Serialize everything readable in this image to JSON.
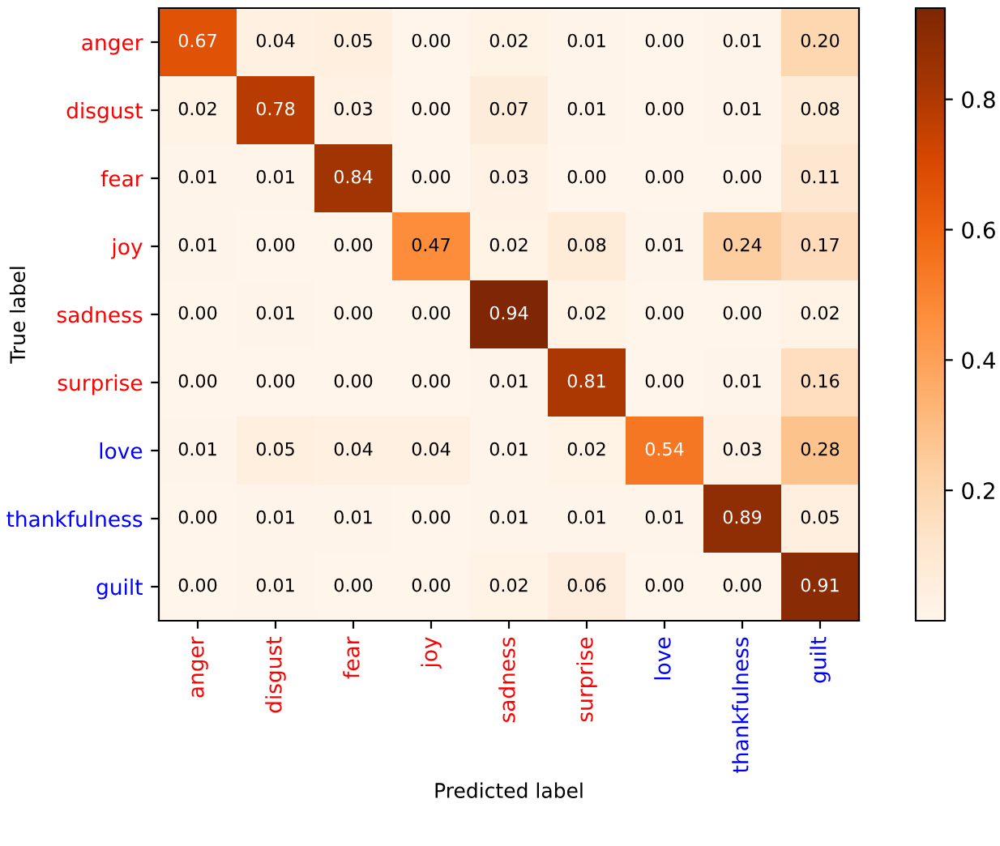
{
  "chart_data": {
    "type": "heatmap",
    "xlabel": "Predicted label",
    "ylabel": "True label",
    "categories": [
      "anger",
      "disgust",
      "fear",
      "joy",
      "sadness",
      "surprise",
      "love",
      "thankfulness",
      "guilt"
    ],
    "y_categories": [
      "anger",
      "disgust",
      "fear",
      "joy",
      "sadness",
      "surprise",
      "love",
      "thankfulness",
      "guilt"
    ],
    "cells": [
      [
        0.67,
        0.04,
        0.05,
        0.0,
        0.02,
        0.01,
        0.0,
        0.01,
        0.2
      ],
      [
        0.02,
        0.78,
        0.03,
        0.0,
        0.07,
        0.01,
        0.0,
        0.01,
        0.08
      ],
      [
        0.01,
        0.01,
        0.84,
        0.0,
        0.03,
        0.0,
        0.0,
        0.0,
        0.11
      ],
      [
        0.01,
        0.0,
        0.0,
        0.47,
        0.02,
        0.08,
        0.01,
        0.24,
        0.17
      ],
      [
        0.0,
        0.01,
        0.0,
        0.0,
        0.94,
        0.02,
        0.0,
        0.0,
        0.02
      ],
      [
        0.0,
        0.0,
        0.0,
        0.0,
        0.01,
        0.81,
        0.0,
        0.01,
        0.16
      ],
      [
        0.01,
        0.05,
        0.04,
        0.04,
        0.01,
        0.02,
        0.54,
        0.03,
        0.28
      ],
      [
        0.0,
        0.01,
        0.01,
        0.0,
        0.01,
        0.01,
        0.01,
        0.89,
        0.05
      ],
      [
        0.0,
        0.01,
        0.0,
        0.0,
        0.02,
        0.06,
        0.0,
        0.0,
        0.91
      ]
    ],
    "cell_labels": [
      [
        "0.67",
        "0.04",
        "0.05",
        "0.00",
        "0.02",
        "0.01",
        "0.00",
        "0.01",
        "0.20"
      ],
      [
        "0.02",
        "0.78",
        "0.03",
        "0.00",
        "0.07",
        "0.01",
        "0.00",
        "0.01",
        "0.08"
      ],
      [
        "0.01",
        "0.01",
        "0.84",
        "0.00",
        "0.03",
        "0.00",
        "0.00",
        "0.00",
        "0.11"
      ],
      [
        "0.01",
        "0.00",
        "0.00",
        "0.47",
        "0.02",
        "0.08",
        "0.01",
        "0.24",
        "0.17"
      ],
      [
        "0.00",
        "0.01",
        "0.00",
        "0.00",
        "0.94",
        "0.02",
        "0.00",
        "0.00",
        "0.02"
      ],
      [
        "0.00",
        "0.00",
        "0.00",
        "0.00",
        "0.01",
        "0.81",
        "0.00",
        "0.01",
        "0.16"
      ],
      [
        "0.01",
        "0.05",
        "0.04",
        "0.04",
        "0.01",
        "0.02",
        "0.54",
        "0.03",
        "0.28"
      ],
      [
        "0.00",
        "0.01",
        "0.01",
        "0.00",
        "0.01",
        "0.01",
        "0.01",
        "0.89",
        "0.05"
      ],
      [
        "0.00",
        "0.01",
        "0.00",
        "0.00",
        "0.02",
        "0.06",
        "0.00",
        "0.00",
        "0.91"
      ]
    ],
    "data_labels": true,
    "clim": [
      0.0,
      0.94
    ],
    "cticks": [
      0.2,
      0.4,
      0.6,
      0.8
    ],
    "grid": false
  }
}
